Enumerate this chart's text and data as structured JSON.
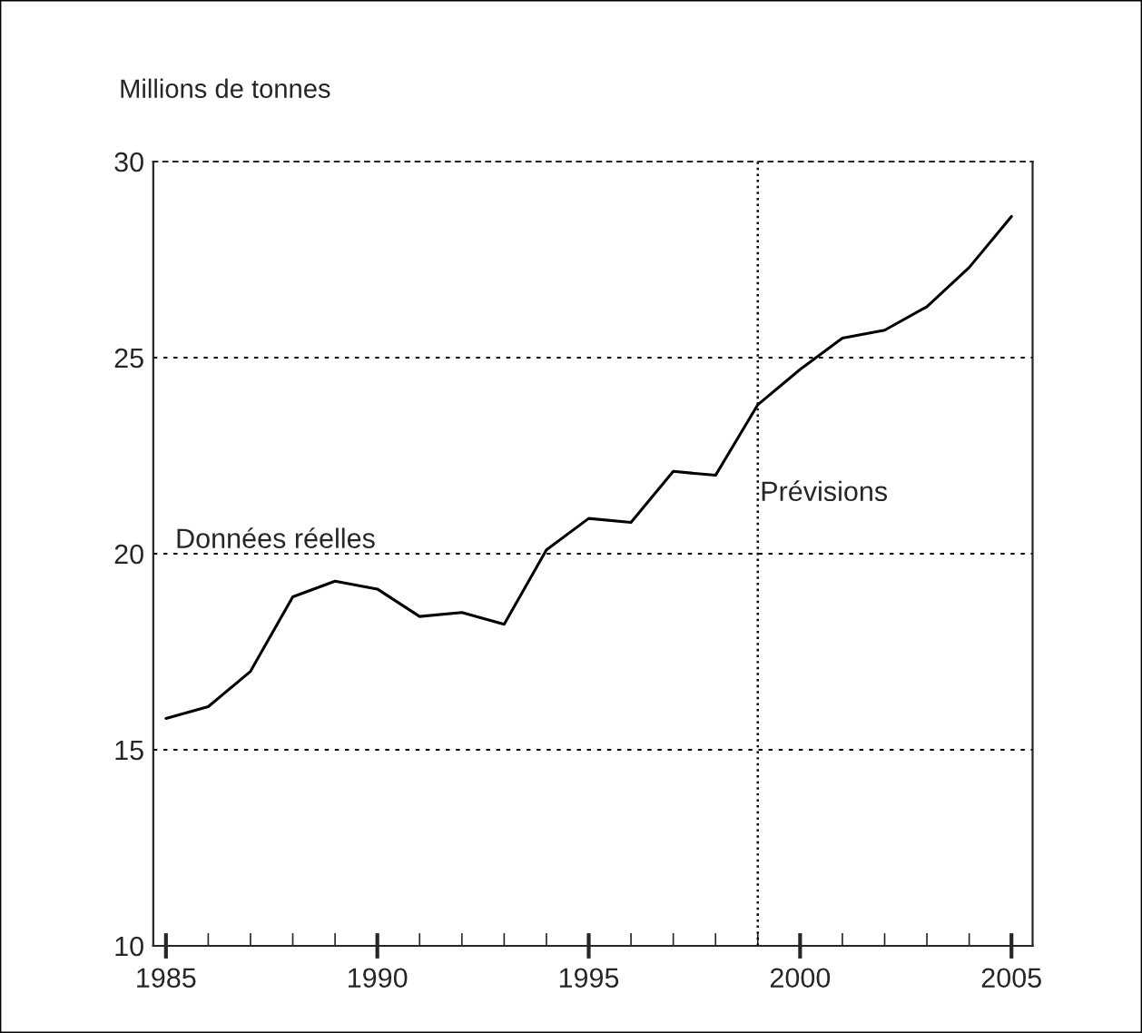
{
  "chart_data": {
    "type": "line",
    "ylabel": "Millions de tonnes",
    "x": [
      1985,
      1986,
      1987,
      1988,
      1989,
      1990,
      1991,
      1992,
      1993,
      1994,
      1995,
      1996,
      1997,
      1998,
      1999,
      2000,
      2001,
      2002,
      2003,
      2004,
      2005
    ],
    "series": [
      {
        "color": "#000000",
        "values": [
          15.8,
          16.1,
          17.0,
          18.9,
          19.3,
          19.1,
          18.4,
          18.5,
          18.2,
          20.1,
          20.9,
          20.8,
          22.1,
          22.0,
          23.8,
          24.7,
          25.5,
          25.7,
          26.3,
          27.3,
          28.6
        ]
      }
    ],
    "xlim": [
      1984.7,
      2005.5
    ],
    "ylim": [
      10,
      30
    ],
    "xticks": [
      1985,
      1990,
      1995,
      2000,
      2005
    ],
    "yticks": [
      10,
      15,
      20,
      25,
      30
    ],
    "grid": "y",
    "line_style": "solid",
    "marker": "none",
    "ref_lines": [
      {
        "axis": "x",
        "value": 1999,
        "color": "#000000",
        "line_style": "dotted"
      }
    ],
    "annotations": [
      "Données réelles",
      "Prévisions"
    ]
  }
}
